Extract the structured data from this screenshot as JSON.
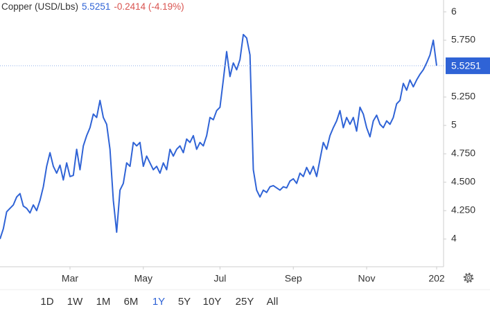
{
  "header": {
    "name": "Copper (USD/Lbs)",
    "change": "-0.2414 (-4.19%)"
  },
  "chart_data": {
    "type": "line",
    "color": "#2f63d6",
    "last_price": 5.5251,
    "values": [
      4.0,
      4.09,
      4.24,
      4.27,
      4.3,
      4.37,
      4.4,
      4.29,
      4.27,
      4.23,
      4.3,
      4.25,
      4.34,
      4.46,
      4.64,
      4.76,
      4.64,
      4.58,
      4.65,
      4.52,
      4.67,
      4.55,
      4.56,
      4.79,
      4.61,
      4.82,
      4.91,
      4.98,
      5.1,
      5.07,
      5.22,
      5.07,
      5.01,
      4.79,
      4.34,
      4.06,
      4.43,
      4.49,
      4.67,
      4.64,
      4.85,
      4.82,
      4.85,
      4.64,
      4.73,
      4.67,
      4.61,
      4.64,
      4.58,
      4.67,
      4.61,
      4.79,
      4.73,
      4.79,
      4.82,
      4.76,
      4.88,
      4.85,
      4.91,
      4.79,
      4.85,
      4.82,
      4.91,
      5.07,
      5.05,
      5.13,
      5.16,
      5.4,
      5.65,
      5.43,
      5.55,
      5.49,
      5.58,
      5.8,
      5.77,
      5.62,
      4.61,
      4.43,
      4.37,
      4.43,
      4.41,
      4.46,
      4.47,
      4.45,
      4.43,
      4.46,
      4.45,
      4.51,
      4.53,
      4.49,
      4.58,
      4.55,
      4.63,
      4.57,
      4.64,
      4.55,
      4.7,
      4.85,
      4.79,
      4.91,
      4.98,
      5.04,
      5.13,
      4.98,
      5.07,
      5.01,
      5.07,
      4.95,
      5.16,
      5.1,
      4.98,
      4.9,
      5.04,
      5.09,
      5.01,
      4.98,
      5.04,
      5.01,
      5.07,
      5.19,
      5.22,
      5.37,
      5.31,
      5.4,
      5.34,
      5.4,
      5.45,
      5.49,
      5.55,
      5.62,
      5.75,
      5.5251
    ],
    "xlim": [
      0,
      131
    ],
    "xticks": [
      {
        "value": 21,
        "label": "Mar"
      },
      {
        "value": 43,
        "label": "May"
      },
      {
        "value": 66,
        "label": "Jul"
      },
      {
        "value": 88,
        "label": "Sep"
      },
      {
        "value": 110,
        "label": "Nov"
      },
      {
        "value": 131,
        "label": "202"
      }
    ],
    "ylim": [
      3.756,
      6.104
    ],
    "yticks": [
      6,
      {
        "value": 5.75,
        "label": "5.750"
      },
      {
        "value": 5.25,
        "label": "5.250"
      },
      5,
      {
        "value": 4.75,
        "label": "4.750"
      },
      {
        "value": 4.5,
        "label": "4.500"
      },
      {
        "value": 4.25,
        "label": "4.250"
      },
      4
    ]
  },
  "range_buttons": [
    "1D",
    "1W",
    "1M",
    "6M",
    "1Y",
    "5Y",
    "10Y",
    "25Y",
    "All"
  ],
  "selected_range": "1Y"
}
